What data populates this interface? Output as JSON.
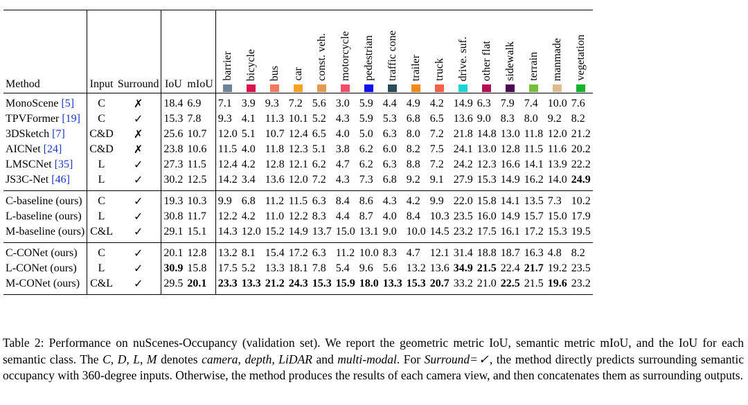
{
  "table": {
    "headers": {
      "method": "Method",
      "input": "Input",
      "surround": "Surround",
      "iou": "IoU",
      "miou": "mIoU"
    },
    "classes": [
      {
        "name": "barrier",
        "color": "#70819a"
      },
      {
        "name": "bicycle",
        "color": "#d9134f"
      },
      {
        "name": "bus",
        "color": "#f17b5f"
      },
      {
        "name": "car",
        "color": "#f5a326"
      },
      {
        "name": "const. veh.",
        "color": "#e39a55"
      },
      {
        "name": "motorcycle",
        "color": "#f04f6a"
      },
      {
        "name": "pedestrian",
        "color": "#1111ee"
      },
      {
        "name": "traffic cone",
        "color": "#2b4b55"
      },
      {
        "name": "trailer",
        "color": "#f58a1a"
      },
      {
        "name": "truck",
        "color": "#f4604c"
      },
      {
        "name": "drive. suf.",
        "color": "#1ed3d3"
      },
      {
        "name": "other flat",
        "color": "#b01055"
      },
      {
        "name": "sidewalk",
        "color": "#4a0b52"
      },
      {
        "name": "terrain",
        "color": "#76bf3d"
      },
      {
        "name": "manmade",
        "color": "#ddbd8f"
      },
      {
        "name": "vegetation",
        "color": "#13b32e"
      }
    ],
    "groups": [
      [
        {
          "method": "MonoScene",
          "cite": "[5]",
          "input": "C",
          "surround": "✗",
          "iou": "18.4",
          "miou": "6.9",
          "values": [
            "7.1",
            "3.9",
            "9.3",
            "7.2",
            "5.6",
            "3.0",
            "5.9",
            "4.4",
            "4.9",
            "4.2",
            "14.9",
            "6.3",
            "7.9",
            "7.4",
            "10.0",
            "7.6"
          ]
        },
        {
          "method": "TPVFormer",
          "cite": "[19]",
          "input": "C",
          "surround": "✓",
          "iou": "15.3",
          "miou": "7.8",
          "values": [
            "9.3",
            "4.1",
            "11.3",
            "10.1",
            "5.2",
            "4.3",
            "5.9",
            "5.3",
            "6.8",
            "6.5",
            "13.6",
            "9.0",
            "8.3",
            "8.0",
            "9.2",
            "8.2"
          ]
        },
        {
          "method": "3DSketch",
          "cite": "[7]",
          "input": "C&D",
          "surround": "✗",
          "iou": "25.6",
          "miou": "10.7",
          "values": [
            "12.0",
            "5.1",
            "10.7",
            "12.4",
            "6.5",
            "4.0",
            "5.0",
            "6.3",
            "8.0",
            "7.2",
            "21.8",
            "14.8",
            "13.0",
            "11.8",
            "12.0",
            "21.2"
          ]
        },
        {
          "method": "AICNet",
          "cite": "[24]",
          "input": "C&D",
          "surround": "✗",
          "iou": "23.8",
          "miou": "10.6",
          "values": [
            "11.5",
            "4.0",
            "11.8",
            "12.3",
            "5.1",
            "3.8",
            "6.2",
            "6.0",
            "8.2",
            "7.5",
            "24.1",
            "13.0",
            "12.8",
            "11.5",
            "11.6",
            "20.2"
          ]
        },
        {
          "method": "LMSCNet",
          "cite": "[35]",
          "input": "L",
          "surround": "✓",
          "iou": "27.3",
          "miou": "11.5",
          "values": [
            "12.4",
            "4.2",
            "12.8",
            "12.1",
            "6.2",
            "4.7",
            "6.2",
            "6.3",
            "8.8",
            "7.2",
            "24.2",
            "12.3",
            "16.6",
            "14.1",
            "13.9",
            "22.2"
          ]
        },
        {
          "method": "JS3C-Net",
          "cite": "[46]",
          "input": "L",
          "surround": "✓",
          "iou": "30.2",
          "miou": "12.5",
          "values": [
            "14.2",
            "3.4",
            "13.6",
            "12.0",
            "7.2",
            "4.3",
            "7.3",
            "6.8",
            "9.2",
            "9.1",
            "27.9",
            "15.3",
            "14.9",
            "16.2",
            "14.0",
            "24.9"
          ]
        }
      ],
      [
        {
          "method": "C-baseline (ours)",
          "cite": "",
          "input": "C",
          "surround": "✓",
          "iou": "19.3",
          "miou": "10.3",
          "values": [
            "9.9",
            "6.8",
            "11.2",
            "11.5",
            "6.3",
            "8.4",
            "8.6",
            "4.3",
            "4.2",
            "9.9",
            "22.0",
            "15.8",
            "14.1",
            "13.5",
            "7.3",
            "10.2"
          ]
        },
        {
          "method": "L-baseline (ours)",
          "cite": "",
          "input": "L",
          "surround": "✓",
          "iou": "30.8",
          "miou": "11.7",
          "values": [
            "12.2",
            "4.2",
            "11.0",
            "12.2",
            "8.3",
            "4.4",
            "8.7",
            "4.0",
            "8.4",
            "10.3",
            "23.5",
            "16.0",
            "14.9",
            "15.7",
            "15.0",
            "17.9"
          ]
        },
        {
          "method": "M-baseline (ours)",
          "cite": "",
          "input": "C&L",
          "surround": "✓",
          "iou": "29.1",
          "miou": "15.1",
          "values": [
            "14.3",
            "12.0",
            "15.2",
            "14.9",
            "13.7",
            "15.0",
            "13.1",
            "9.0",
            "10.0",
            "14.5",
            "23.2",
            "17.5",
            "16.1",
            "17.2",
            "15.3",
            "19.5"
          ]
        }
      ],
      [
        {
          "method": "C-CONet (ours)",
          "cite": "",
          "input": "C",
          "surround": "✓",
          "iou": "20.1",
          "miou": "12.8",
          "values": [
            "13.2",
            "8.1",
            "15.4",
            "17.2",
            "6.3",
            "11.2",
            "10.0",
            "8.3",
            "4.7",
            "12.1",
            "31.4",
            "18.8",
            "18.7",
            "16.3",
            "4.8",
            "8.2"
          ]
        },
        {
          "method": "L-CONet (ours)",
          "cite": "",
          "input": "L",
          "surround": "✓",
          "iou": "30.9",
          "miou": "15.8",
          "values": [
            "17.5",
            "5.2",
            "13.3",
            "18.1",
            "7.8",
            "5.4",
            "9.6",
            "5.6",
            "13.2",
            "13.6",
            "34.9",
            "21.5",
            "22.4",
            "21.7",
            "19.2",
            "23.5"
          ]
        },
        {
          "method": "M-CONet (ours)",
          "cite": "",
          "input": "C&L",
          "surround": "✓",
          "iou": "29.5",
          "miou": "20.1",
          "values": [
            "23.3",
            "13.3",
            "21.2",
            "24.3",
            "15.3",
            "15.9",
            "18.0",
            "13.3",
            "15.3",
            "20.7",
            "33.2",
            "21.0",
            "22.5",
            "21.5",
            "19.6",
            "23.2"
          ]
        }
      ]
    ],
    "bold": [
      {
        "g": 0,
        "r": 5,
        "col": 15
      },
      {
        "g": 2,
        "r": 1,
        "col": "iou"
      },
      {
        "g": 2,
        "r": 1,
        "col": 10
      },
      {
        "g": 2,
        "r": 1,
        "col": 11
      },
      {
        "g": 2,
        "r": 1,
        "col": 13
      },
      {
        "g": 2,
        "r": 2,
        "col": "miou"
      },
      {
        "g": 2,
        "r": 2,
        "col": 0
      },
      {
        "g": 2,
        "r": 2,
        "col": 1
      },
      {
        "g": 2,
        "r": 2,
        "col": 2
      },
      {
        "g": 2,
        "r": 2,
        "col": 3
      },
      {
        "g": 2,
        "r": 2,
        "col": 4
      },
      {
        "g": 2,
        "r": 2,
        "col": 5
      },
      {
        "g": 2,
        "r": 2,
        "col": 6
      },
      {
        "g": 2,
        "r": 2,
        "col": 7
      },
      {
        "g": 2,
        "r": 2,
        "col": 8
      },
      {
        "g": 2,
        "r": 2,
        "col": 9
      },
      {
        "g": 2,
        "r": 2,
        "col": 12
      },
      {
        "g": 2,
        "r": 2,
        "col": 14
      }
    ]
  },
  "caption": {
    "label": "Table 2:",
    "s1": "Performance on nuScenes-Occupancy (validation set). We report the geometric metric IoU, semantic metric mIoU, and the IoU for each semantic class. The",
    "vars": "C, D, L, M",
    "s2": "denotes",
    "modalities": "camera, depth, LiDAR",
    "s3": "and",
    "multimodal": "multi-modal",
    "s4": ". For",
    "surround_eq": "Surround=✓",
    "s5": ", the method directly predicts surrounding semantic occupancy with 360-degree inputs. Otherwise, the method produces the results of each camera view, and then concatenates them as surrounding outputs."
  }
}
